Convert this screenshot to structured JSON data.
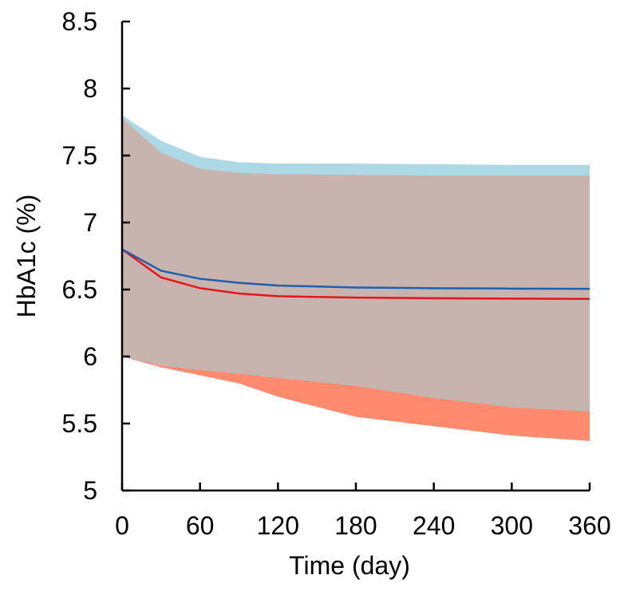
{
  "chart_data": {
    "type": "line",
    "title": "",
    "xlabel": "Time (day)",
    "ylabel": "HbA1c (%)",
    "xlim": [
      0,
      360
    ],
    "ylim": [
      5,
      8.5
    ],
    "xticks": [
      0,
      60,
      120,
      180,
      240,
      300,
      360
    ],
    "yticks": [
      5,
      5.5,
      6,
      6.5,
      7,
      7.5,
      8,
      8.5
    ],
    "xtick_labels": [
      "0",
      "60",
      "120",
      "180",
      "240",
      "300",
      "360"
    ],
    "ytick_labels": [
      "5",
      "5.5",
      "6",
      "6.5",
      "7",
      "7.5",
      "8",
      "8.5"
    ],
    "grid": false,
    "series": [
      {
        "name": "blue",
        "color": "#1f5fae",
        "band_color": "#add8e6",
        "x": [
          0,
          30,
          60,
          90,
          120,
          180,
          240,
          300,
          360
        ],
        "values": [
          6.8,
          6.64,
          6.58,
          6.55,
          6.53,
          6.515,
          6.51,
          6.507,
          6.505
        ],
        "upper": [
          7.8,
          7.61,
          7.49,
          7.45,
          7.44,
          7.44,
          7.435,
          7.43,
          7.43
        ],
        "lower": [
          6.0,
          5.93,
          5.9,
          5.87,
          5.84,
          5.78,
          5.69,
          5.62,
          5.59
        ]
      },
      {
        "name": "red",
        "color": "#e8131a",
        "band_color": "#ff8a6e",
        "x": [
          0,
          30,
          60,
          90,
          120,
          180,
          240,
          300,
          360
        ],
        "values": [
          6.8,
          6.59,
          6.51,
          6.47,
          6.45,
          6.44,
          6.435,
          6.432,
          6.43
        ],
        "upper": [
          7.78,
          7.52,
          7.4,
          7.37,
          7.36,
          7.355,
          7.35,
          7.35,
          7.35
        ],
        "lower": [
          6.0,
          5.92,
          5.86,
          5.8,
          5.7,
          5.55,
          5.48,
          5.41,
          5.37
        ]
      }
    ],
    "overlap_color": "#c8b4ae"
  }
}
